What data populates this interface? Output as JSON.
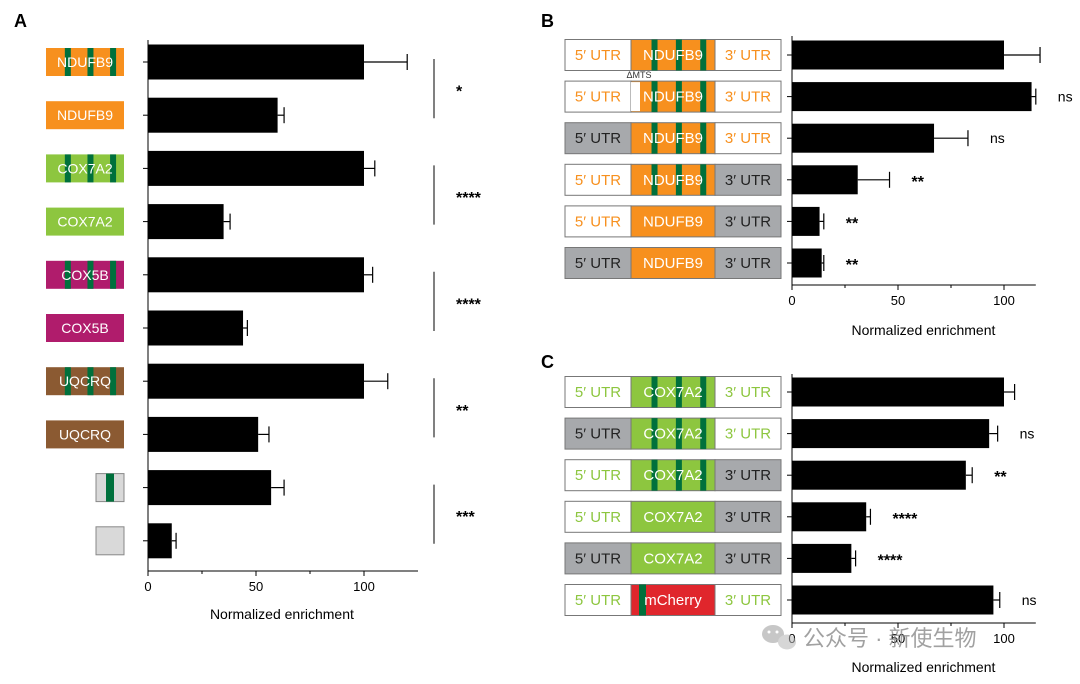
{
  "colors": {
    "orange": "#F7901E",
    "green": "#8DC63F",
    "magenta": "#B01C6C",
    "brown": "#8B5A32",
    "gray": "#A7A9AC",
    "light_gray": "#D9D9D9",
    "dark_green": "#00703C",
    "red": "#E0262C",
    "bar": "#000000"
  },
  "watermark": {
    "text": "公众号 · 新使生物",
    "icon": "wechat-icon"
  },
  "chart_data": [
    {
      "panel": "A",
      "type": "bar",
      "orientation": "horizontal",
      "xlabel": "Normalized enrichment",
      "xlim": [
        0,
        125
      ],
      "xticks": [
        0,
        50,
        100
      ],
      "categories": [
        "NDUFB9",
        "NDUFB9",
        "COX7A2",
        "COX7A2",
        "COX5B",
        "COX5B",
        "UQCRQ",
        "UQCRQ",
        "",
        ""
      ],
      "construct_colors": [
        "orange",
        "orange",
        "green",
        "green",
        "magenta",
        "magenta",
        "brown",
        "brown",
        "light_gray",
        "light_gray"
      ],
      "construct_stripes": [
        true,
        false,
        true,
        false,
        true,
        false,
        true,
        false,
        true,
        false
      ],
      "values": [
        100,
        60,
        100,
        35,
        100,
        44,
        100,
        51,
        57,
        11
      ],
      "errors": [
        20,
        3,
        5,
        3,
        4,
        2,
        11,
        5,
        6,
        2
      ],
      "comparisons": [
        {
          "rows": [
            0,
            1
          ],
          "label": "*"
        },
        {
          "rows": [
            2,
            3
          ],
          "label": "****"
        },
        {
          "rows": [
            4,
            5
          ],
          "label": "****"
        },
        {
          "rows": [
            6,
            7
          ],
          "label": "**"
        },
        {
          "rows": [
            8,
            9
          ],
          "label": "***"
        }
      ]
    },
    {
      "panel": "B",
      "type": "bar",
      "orientation": "horizontal",
      "xlabel": "Normalized enrichment",
      "xlim": [
        0,
        115
      ],
      "xticks": [
        0,
        50,
        100
      ],
      "utr5_label": "5′ UTR",
      "utr3_label": "3′ UTR",
      "gene": "NDUFB9",
      "mts_label": "ΔMTS",
      "rows": [
        {
          "utr5": "orange",
          "cds_stripes": true,
          "mts_deleted": false,
          "utr3": "orange",
          "value": 100,
          "error": 17,
          "sig": ""
        },
        {
          "utr5": "orange",
          "cds_stripes": true,
          "mts_deleted": true,
          "utr3": "orange",
          "value": 113,
          "error": 2,
          "sig": "ns"
        },
        {
          "utr5": "gray",
          "cds_stripes": true,
          "mts_deleted": false,
          "utr3": "orange",
          "value": 67,
          "error": 16,
          "sig": "ns"
        },
        {
          "utr5": "orange",
          "cds_stripes": true,
          "mts_deleted": false,
          "utr3": "gray",
          "value": 31,
          "error": 15,
          "sig": "**"
        },
        {
          "utr5": "orange",
          "cds_stripes": false,
          "mts_deleted": false,
          "utr3": "gray",
          "value": 13,
          "error": 2,
          "sig": "**"
        },
        {
          "utr5": "gray",
          "cds_stripes": false,
          "mts_deleted": false,
          "utr3": "gray",
          "value": 14,
          "error": 1,
          "sig": "**"
        }
      ]
    },
    {
      "panel": "C",
      "type": "bar",
      "orientation": "horizontal",
      "xlabel": "Normalized enrichment",
      "xlim": [
        0,
        115
      ],
      "xticks": [
        0,
        50,
        100
      ],
      "utr5_label": "5′ UTR",
      "utr3_label": "3′ UTR",
      "rows": [
        {
          "utr5": "green",
          "cds": "COX7A2",
          "cds_color": "green",
          "cds_stripes": true,
          "utr3": "green",
          "value": 100,
          "error": 5,
          "sig": ""
        },
        {
          "utr5": "gray",
          "cds": "COX7A2",
          "cds_color": "green",
          "cds_stripes": true,
          "utr3": "green",
          "value": 93,
          "error": 4,
          "sig": "ns"
        },
        {
          "utr5": "green",
          "cds": "COX7A2",
          "cds_color": "green",
          "cds_stripes": true,
          "utr3": "gray",
          "value": 82,
          "error": 3,
          "sig": "**"
        },
        {
          "utr5": "green",
          "cds": "COX7A2",
          "cds_color": "green",
          "cds_stripes": false,
          "utr3": "gray",
          "value": 35,
          "error": 2,
          "sig": "****"
        },
        {
          "utr5": "gray",
          "cds": "COX7A2",
          "cds_color": "green",
          "cds_stripes": false,
          "utr3": "gray",
          "value": 28,
          "error": 2,
          "sig": "****"
        },
        {
          "utr5": "green",
          "cds": "mCherry",
          "cds_color": "red",
          "cds_stripes": true,
          "utr3": "green",
          "value": 95,
          "error": 3,
          "sig": "ns"
        }
      ]
    }
  ]
}
